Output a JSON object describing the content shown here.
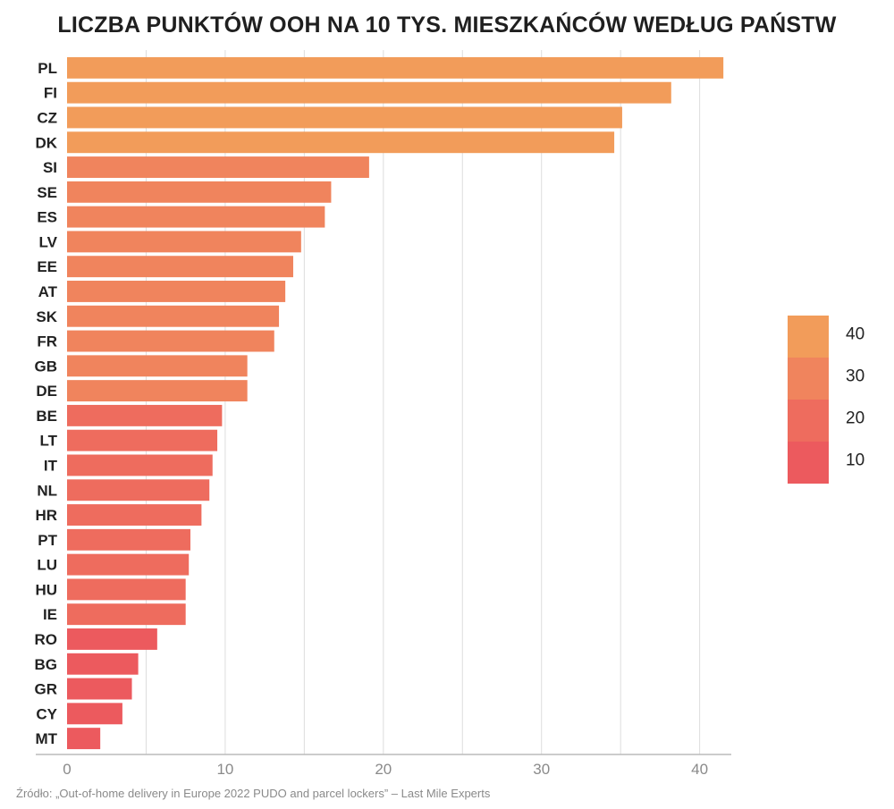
{
  "chart_data": {
    "type": "bar",
    "orientation": "horizontal",
    "title": "LICZBA PUNKTÓW OOH NA 10 TYS. MIESZKAŃCÓW WEDŁUG PAŃSTW",
    "categories": [
      "PL",
      "FI",
      "CZ",
      "DK",
      "SI",
      "SE",
      "ES",
      "LV",
      "EE",
      "AT",
      "SK",
      "FR",
      "GB",
      "DE",
      "BE",
      "LT",
      "IT",
      "NL",
      "HR",
      "PT",
      "LU",
      "HU",
      "IE",
      "RO",
      "BG",
      "GR",
      "CY",
      "MT"
    ],
    "values": [
      41.5,
      38.2,
      35.1,
      34.6,
      19.1,
      16.7,
      16.3,
      14.8,
      14.3,
      13.8,
      13.4,
      13.1,
      11.4,
      11.4,
      9.8,
      9.5,
      9.2,
      9.0,
      8.5,
      7.8,
      7.7,
      7.5,
      7.5,
      5.7,
      4.5,
      4.1,
      3.5,
      2.1
    ],
    "xlim": [
      0,
      42
    ],
    "xticks": [
      0,
      10,
      20,
      30,
      40
    ],
    "grid": true,
    "legend": {
      "position": "right",
      "entries": [
        {
          "label": "40",
          "color": "#f29c5a"
        },
        {
          "label": "30",
          "color": "#f0845d"
        },
        {
          "label": "20",
          "color": "#ee6c5e"
        },
        {
          "label": "10",
          "color": "#ec5a5e"
        }
      ]
    },
    "source": "Źródło: „Out-of-home delivery in Europe 2022 PUDO and parcel lockers” – Last Mile Experts"
  }
}
